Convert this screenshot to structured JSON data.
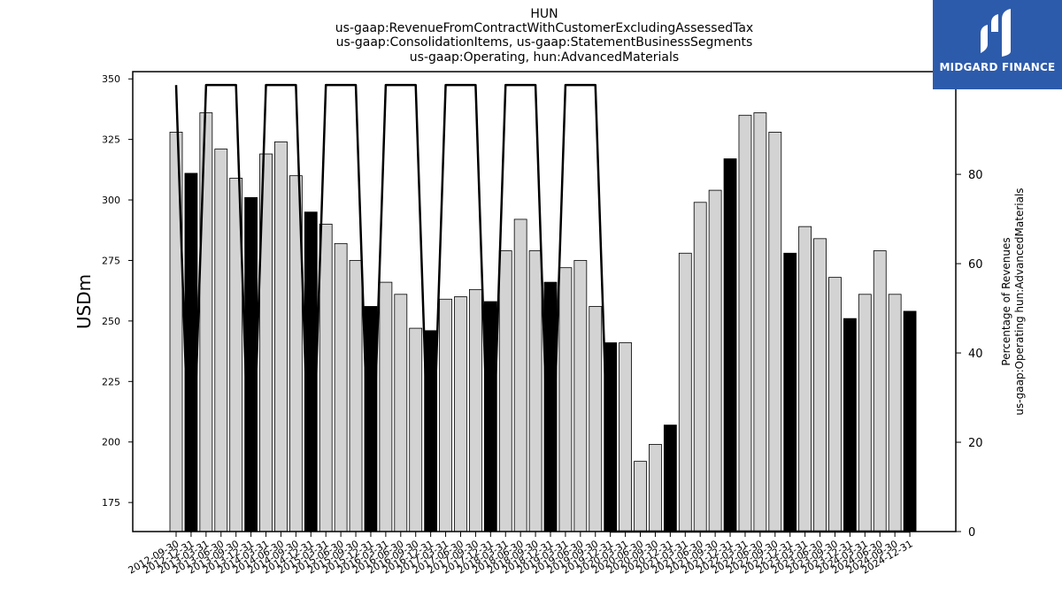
{
  "chart_data": {
    "type": "bar",
    "title_lines": [
      "HUN",
      "us-gaap:RevenueFromContractWithCustomerExcludingAssessedTax",
      "us-gaap:ConsolidationItems, us-gaap:StatementBusinessSegments",
      "us-gaap:Operating, hun:AdvancedMaterials"
    ],
    "ylabel": "USDm",
    "y2label_lines": [
      "Percentage of Revenues",
      "us-gaap:Operating hun:AdvancedMaterials"
    ],
    "ylim": [
      163,
      353
    ],
    "y2lim": [
      0,
      103
    ],
    "yticks": [
      175,
      200,
      225,
      250,
      275,
      300,
      325,
      350
    ],
    "y2ticks": [
      0,
      20,
      40,
      60,
      80,
      100
    ],
    "categories": [
      "2012-09-30",
      "2012-12-31",
      "2013-03-31",
      "2013-06-30",
      "2013-09-30",
      "2013-12-31",
      "2014-03-31",
      "2014-06-30",
      "2014-09-30",
      "2014-12-31",
      "2015-03-31",
      "2015-06-30",
      "2015-09-30",
      "2015-12-31",
      "2016-03-31",
      "2016-06-30",
      "2016-09-30",
      "2016-12-31",
      "2017-03-31",
      "2017-06-30",
      "2017-09-30",
      "2017-12-31",
      "2018-03-31",
      "2018-06-30",
      "2018-09-30",
      "2018-12-31",
      "2019-03-31",
      "2019-06-30",
      "2019-09-30",
      "2019-12-31",
      "2020-03-31",
      "2020-06-30",
      "2020-09-30",
      "2020-12-31",
      "2021-03-31",
      "2021-06-30",
      "2021-09-30",
      "2021-12-31",
      "2022-03-31",
      "2022-06-30",
      "2022-09-30",
      "2022-12-31",
      "2023-03-31",
      "2023-06-30",
      "2023-09-30",
      "2023-12-31",
      "2024-03-31",
      "2024-06-30",
      "2024-09-30",
      "2024-12-31"
    ],
    "values": [
      328,
      311,
      336,
      321,
      309,
      301,
      319,
      324,
      310,
      295,
      290,
      282,
      275,
      256,
      266,
      261,
      247,
      246,
      259,
      260,
      263,
      258,
      279,
      292,
      279,
      266,
      272,
      275,
      256,
      241,
      241,
      192,
      199,
      207,
      278,
      299,
      304,
      317,
      335,
      336,
      328,
      278,
      289,
      284,
      268,
      251,
      261,
      279,
      261,
      254
    ],
    "bar_colors": [
      "#d3d3d3",
      "#000000",
      "#d3d3d3",
      "#d3d3d3",
      "#d3d3d3",
      "#000000",
      "#d3d3d3",
      "#d3d3d3",
      "#d3d3d3",
      "#000000",
      "#d3d3d3",
      "#d3d3d3",
      "#d3d3d3",
      "#000000",
      "#d3d3d3",
      "#d3d3d3",
      "#d3d3d3",
      "#000000",
      "#d3d3d3",
      "#d3d3d3",
      "#d3d3d3",
      "#000000",
      "#d3d3d3",
      "#d3d3d3",
      "#d3d3d3",
      "#000000",
      "#d3d3d3",
      "#d3d3d3",
      "#d3d3d3",
      "#000000",
      "#d3d3d3",
      "#d3d3d3",
      "#d3d3d3",
      "#000000",
      "#d3d3d3",
      "#d3d3d3",
      "#d3d3d3",
      "#000000",
      "#d3d3d3",
      "#d3d3d3",
      "#d3d3d3",
      "#000000",
      "#d3d3d3",
      "#d3d3d3",
      "#d3d3d3",
      "#000000",
      "#d3d3d3",
      "#d3d3d3",
      "#d3d3d3",
      "#000000"
    ],
    "line_percent": [
      100,
      0,
      100,
      100,
      100,
      0,
      100,
      100,
      100,
      0,
      100,
      100,
      100,
      0,
      100,
      100,
      100,
      0,
      100,
      100,
      100,
      0,
      100,
      100,
      100,
      0,
      100,
      100,
      100,
      0,
      0,
      0,
      0,
      0,
      0,
      0,
      0,
      0,
      0,
      0,
      0,
      0,
      0,
      0,
      0,
      0,
      0,
      0,
      0,
      0
    ],
    "line_color": "#000000",
    "grid": false
  },
  "logo": {
    "text": "MIDGARD FINANCE",
    "background": "#2d5bab"
  }
}
